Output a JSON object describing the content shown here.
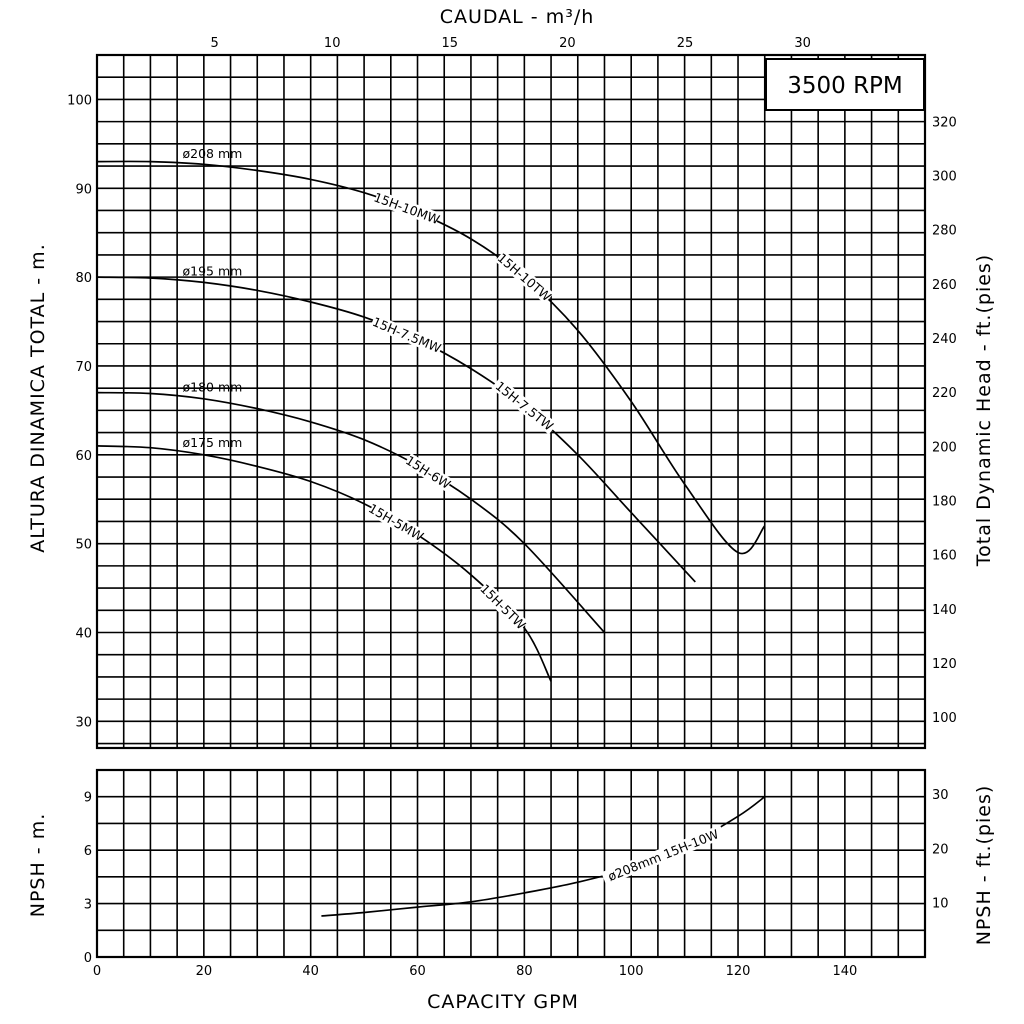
{
  "chart_data": [
    {
      "type": "line",
      "name": "head",
      "badge": "3500 RPM",
      "xlabel": "CAPACITY GPM",
      "x2label": "CAUDAL - m³/h",
      "ylabel": "ALTURA DINAMICA TOTAL - m.",
      "y2label": "Total Dynamic Head - ft.(pies)",
      "xlim": [
        0,
        155
      ],
      "ylim": [
        27,
        105
      ],
      "x_ticks": [
        0,
        20,
        40,
        60,
        80,
        100,
        120,
        140
      ],
      "x2_ticks": [
        5,
        10,
        15,
        20,
        25,
        30
      ],
      "y_ticks": [
        30,
        40,
        50,
        60,
        70,
        80,
        90,
        100
      ],
      "y2_ticks": [
        100,
        120,
        140,
        160,
        180,
        200,
        220,
        240,
        260,
        280,
        300,
        320
      ],
      "grid": true,
      "series": [
        {
          "name": "ø208 mm",
          "models": [
            "15H-10MW",
            "15H-10TW"
          ],
          "x": [
            0,
            10,
            20,
            30,
            40,
            50,
            60,
            70,
            80,
            90,
            100,
            110,
            120,
            125
          ],
          "y": [
            93,
            93,
            92.7,
            92,
            91,
            89.5,
            87.3,
            84.3,
            80,
            74,
            66,
            56.7,
            49,
            52
          ]
        },
        {
          "name": "ø195 mm",
          "models": [
            "15H-7.5MW",
            "15H-7.5TW"
          ],
          "x": [
            0,
            10,
            20,
            30,
            40,
            50,
            60,
            70,
            80,
            90,
            100,
            112
          ],
          "y": [
            80,
            79.9,
            79.4,
            78.5,
            77.2,
            75.5,
            73,
            69.7,
            65.5,
            60,
            53.5,
            45.7
          ]
        },
        {
          "name": "ø180 mm",
          "models": [
            "15H-6W"
          ],
          "x": [
            0,
            10,
            20,
            30,
            40,
            50,
            60,
            70,
            80,
            95
          ],
          "y": [
            67,
            66.9,
            66.3,
            65.2,
            63.7,
            61.7,
            58.8,
            55,
            50,
            40
          ]
        },
        {
          "name": "ø175 mm",
          "models": [
            "15H-5MW",
            "15H-5TW"
          ],
          "x": [
            0,
            10,
            20,
            30,
            40,
            50,
            60,
            70,
            80,
            85
          ],
          "y": [
            61,
            60.8,
            60,
            58.7,
            57,
            54.5,
            51,
            46.5,
            40.5,
            34.5
          ]
        }
      ]
    },
    {
      "type": "line",
      "name": "npsh",
      "xlabel": "CAPACITY GPM",
      "ylabel": "NPSH - m.",
      "y2label": "NPSH - ft.(pies)",
      "xlim": [
        0,
        155
      ],
      "ylim": [
        0,
        10.5
      ],
      "x_ticks": [
        0,
        20,
        40,
        60,
        80,
        100,
        120,
        140
      ],
      "y_ticks": [
        0,
        3,
        6,
        9
      ],
      "y2_ticks": [
        10,
        20,
        30
      ],
      "grid": true,
      "series": [
        {
          "name": "ø208mm 15H-10W",
          "x": [
            42,
            50,
            60,
            70,
            80,
            90,
            100,
            110,
            120,
            125
          ],
          "y": [
            2.3,
            2.5,
            2.8,
            3.1,
            3.6,
            4.2,
            5,
            6.2,
            7.9,
            9
          ]
        }
      ]
    }
  ]
}
